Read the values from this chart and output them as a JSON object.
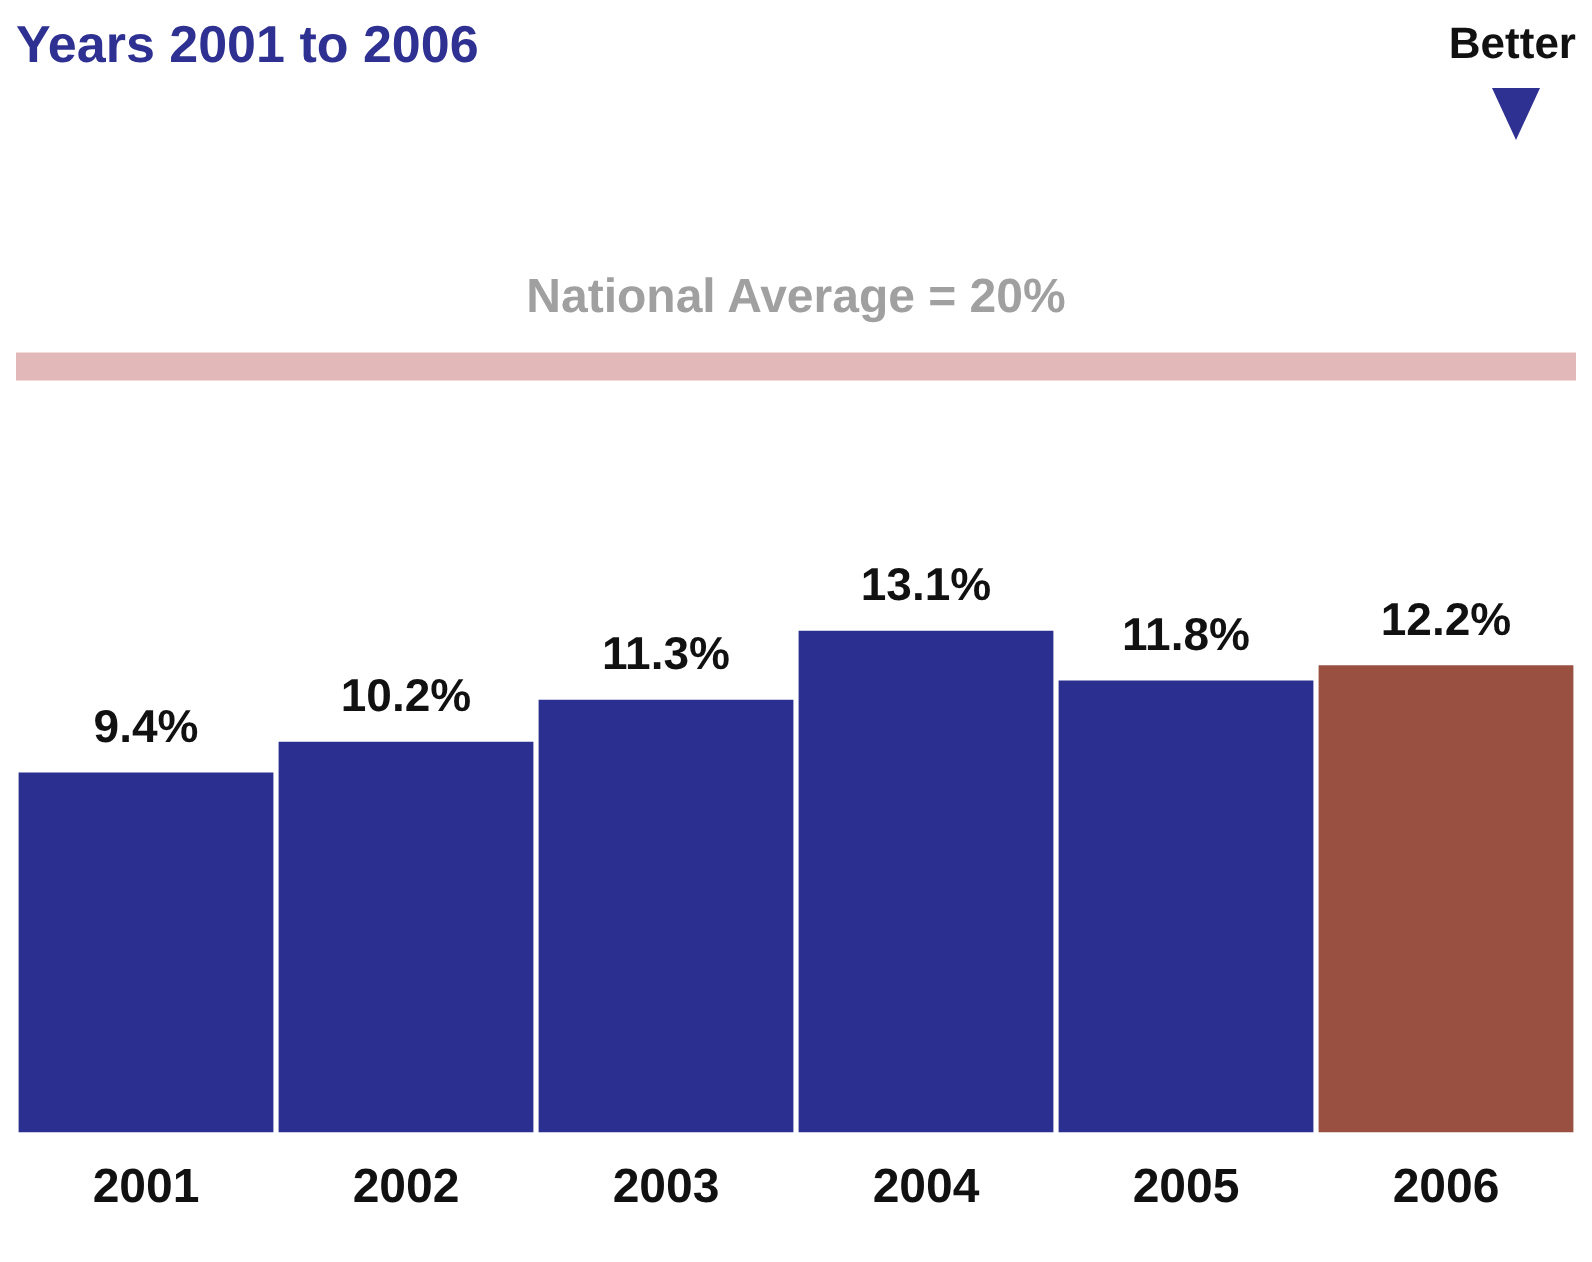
{
  "chart_data": {
    "type": "bar",
    "title": "Years 2001 to 2006",
    "categories": [
      "2001",
      "2002",
      "2003",
      "2004",
      "2005",
      "2006"
    ],
    "values": [
      9.4,
      10.2,
      11.3,
      13.1,
      11.8,
      12.2
    ],
    "colors": [
      "#2b2f8f",
      "#2b2f8f",
      "#2b2f8f",
      "#2b2f8f",
      "#2b2f8f",
      "#9a5040"
    ],
    "value_labels": [
      "9.4%",
      "10.2%",
      "11.3%",
      "13.1%",
      "11.8%",
      "12.2%"
    ],
    "tick_labels": "x",
    "grid": false,
    "legend": false,
    "ref_lines": [
      {
        "axis": "y",
        "value": 20,
        "label": "National Average = 20%",
        "color": "#e3b8b8"
      }
    ],
    "annotations": [
      "Better"
    ]
  }
}
